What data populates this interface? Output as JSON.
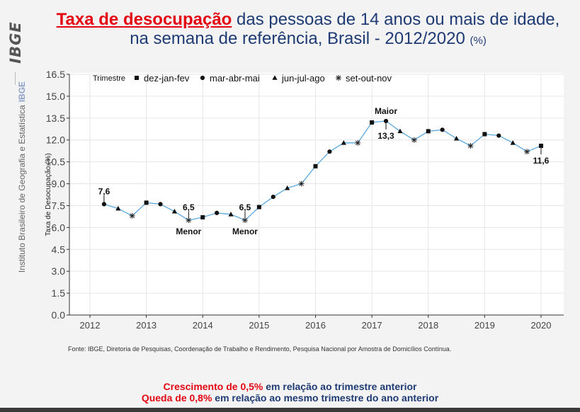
{
  "sidebar": {
    "logo": "IBGE",
    "institution": "Instituto Brasileiro de Geografia e Estatística",
    "institution_abbr": "IBGE"
  },
  "title": {
    "highlight": "Taxa de desocupação",
    "line1_rest": " das pessoas de 14 anos ou mais de idade,",
    "line2": "na semana de referência, Brasil - 2012/2020",
    "unit": "(%)"
  },
  "chart_data": {
    "type": "line",
    "xlabel": "",
    "ylabel": "Taxa de Desocupação (%)",
    "ylim": [
      0,
      16.5
    ],
    "yticks": [
      0.0,
      1.5,
      3.0,
      4.5,
      6.0,
      7.5,
      9.0,
      10.5,
      12.0,
      13.5,
      15.0,
      16.5
    ],
    "ytick_labels": [
      "0.0",
      "1.5",
      "3.0",
      "4.5",
      "6.0",
      "7.5",
      "9.0",
      "10.5",
      "12.0",
      "13.5",
      "15.0",
      "16.5"
    ],
    "xlim": [
      2011.6,
      2020.4
    ],
    "xticks": [
      2012,
      2013,
      2014,
      2015,
      2016,
      2017,
      2018,
      2019,
      2020
    ],
    "xtick_labels": [
      "2012",
      "2013",
      "2014",
      "2015",
      "2016",
      "2017",
      "2018",
      "2019",
      "2020"
    ],
    "grid": true,
    "line_color": "#5aa8dc",
    "legend": {
      "title": "Trimestre",
      "placement": "top-left",
      "entries": [
        {
          "label": "dez-jan-fev",
          "marker": "square"
        },
        {
          "label": "mar-abr-mai",
          "marker": "circle"
        },
        {
          "label": "jun-jul-ago",
          "marker": "triangle"
        },
        {
          "label": "set-out-nov",
          "marker": "asterisk"
        }
      ]
    },
    "points": [
      {
        "x": 2012.25,
        "y": 7.6,
        "marker": "circle"
      },
      {
        "x": 2012.5,
        "y": 7.3,
        "marker": "triangle"
      },
      {
        "x": 2012.75,
        "y": 6.8,
        "marker": "asterisk"
      },
      {
        "x": 2013.0,
        "y": 7.7,
        "marker": "square"
      },
      {
        "x": 2013.25,
        "y": 7.6,
        "marker": "circle"
      },
      {
        "x": 2013.5,
        "y": 7.1,
        "marker": "triangle"
      },
      {
        "x": 2013.75,
        "y": 6.5,
        "marker": "asterisk"
      },
      {
        "x": 2014.0,
        "y": 6.7,
        "marker": "square"
      },
      {
        "x": 2014.25,
        "y": 7.0,
        "marker": "circle"
      },
      {
        "x": 2014.5,
        "y": 6.9,
        "marker": "triangle"
      },
      {
        "x": 2014.75,
        "y": 6.5,
        "marker": "asterisk"
      },
      {
        "x": 2015.0,
        "y": 7.4,
        "marker": "square"
      },
      {
        "x": 2015.25,
        "y": 8.1,
        "marker": "circle"
      },
      {
        "x": 2015.5,
        "y": 8.7,
        "marker": "triangle"
      },
      {
        "x": 2015.75,
        "y": 9.0,
        "marker": "asterisk"
      },
      {
        "x": 2016.0,
        "y": 10.2,
        "marker": "square"
      },
      {
        "x": 2016.25,
        "y": 11.2,
        "marker": "circle"
      },
      {
        "x": 2016.5,
        "y": 11.8,
        "marker": "triangle"
      },
      {
        "x": 2016.75,
        "y": 11.8,
        "marker": "asterisk"
      },
      {
        "x": 2017.0,
        "y": 13.2,
        "marker": "square"
      },
      {
        "x": 2017.25,
        "y": 13.3,
        "marker": "circle"
      },
      {
        "x": 2017.5,
        "y": 12.6,
        "marker": "triangle"
      },
      {
        "x": 2017.75,
        "y": 12.0,
        "marker": "asterisk"
      },
      {
        "x": 2018.0,
        "y": 12.6,
        "marker": "square"
      },
      {
        "x": 2018.25,
        "y": 12.7,
        "marker": "circle"
      },
      {
        "x": 2018.5,
        "y": 12.1,
        "marker": "triangle"
      },
      {
        "x": 2018.75,
        "y": 11.6,
        "marker": "asterisk"
      },
      {
        "x": 2019.0,
        "y": 12.4,
        "marker": "square"
      },
      {
        "x": 2019.25,
        "y": 12.3,
        "marker": "circle"
      },
      {
        "x": 2019.5,
        "y": 11.8,
        "marker": "triangle"
      },
      {
        "x": 2019.75,
        "y": 11.2,
        "marker": "asterisk"
      },
      {
        "x": 2020.0,
        "y": 11.6,
        "marker": "square"
      }
    ],
    "annotations": [
      {
        "x": 2012.25,
        "y": 7.6,
        "value": "7,6",
        "position": "above"
      },
      {
        "x": 2013.75,
        "y": 6.5,
        "value": "6,5",
        "position": "above",
        "note": "Menor"
      },
      {
        "x": 2014.75,
        "y": 6.5,
        "value": "6,5",
        "position": "above",
        "note": "Menor"
      },
      {
        "x": 2017.25,
        "y": 13.3,
        "value": "13,3",
        "position": "below",
        "note": "Maior"
      },
      {
        "x": 2020.0,
        "y": 11.6,
        "value": "11,6",
        "position": "below"
      }
    ]
  },
  "source": "Fonte: IBGE, Diretoria de Pesquisas, Coordenação de Trabalho e Rendimento, Pesquisa Nacional por Amostra de Domicílios Contínua.",
  "footer": {
    "line1_highlight": "Crescimento de 0,5%",
    "line1_rest": " em relação ao trimestre anterior",
    "line2_highlight": "Queda de 0,8%",
    "line2_rest": " em relação ao mesmo trimestre do ano anterior"
  }
}
